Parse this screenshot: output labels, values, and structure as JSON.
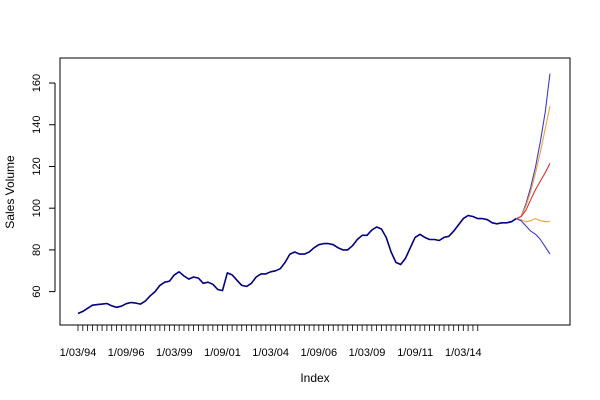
{
  "chart_data": {
    "type": "line",
    "xlabel": "Index",
    "ylabel": "Sales Volume",
    "ylim": [
      44,
      172
    ],
    "y_ticks": [
      60,
      80,
      100,
      120,
      140,
      160
    ],
    "x_tick_labels": [
      "1/03/94",
      "1/09/96",
      "1/03/99",
      "1/09/01",
      "1/03/04",
      "1/09/06",
      "1/03/09",
      "1/09/11",
      "1/03/14"
    ],
    "x_tick_indices": [
      0,
      10,
      20,
      30,
      40,
      50,
      60,
      70,
      80
    ],
    "index_count": 84,
    "forecast_end_index": 91.5,
    "grid": false,
    "legend": "none",
    "series": [
      {
        "color": "#000080",
        "points": [
          [
            0,
            49.5
          ],
          [
            1,
            50.5
          ],
          [
            2,
            52
          ],
          [
            3,
            53.5
          ],
          [
            4,
            53.8
          ],
          [
            5,
            54
          ],
          [
            6,
            54.3
          ],
          [
            7,
            53.2
          ],
          [
            8,
            52.5
          ],
          [
            9,
            53
          ],
          [
            10,
            54.2
          ],
          [
            11,
            54.8
          ],
          [
            12,
            54.5
          ],
          [
            13,
            54
          ],
          [
            14,
            55.5
          ],
          [
            15,
            58
          ],
          [
            16,
            60
          ],
          [
            17,
            63
          ],
          [
            18,
            64.5
          ],
          [
            19,
            65
          ],
          [
            20,
            68
          ],
          [
            21,
            69.5
          ],
          [
            22,
            67.5
          ],
          [
            23,
            66
          ],
          [
            24,
            67
          ],
          [
            25,
            66.5
          ],
          [
            26,
            64
          ],
          [
            27,
            64.5
          ],
          [
            28,
            63.5
          ],
          [
            29,
            61
          ],
          [
            30,
            60.5
          ],
          [
            31,
            69
          ],
          [
            32,
            68
          ],
          [
            33,
            65.5
          ],
          [
            34,
            63
          ],
          [
            35,
            62.5
          ],
          [
            36,
            64
          ],
          [
            37,
            67
          ],
          [
            38,
            68.5
          ],
          [
            39,
            68.5
          ],
          [
            40,
            69.5
          ],
          [
            41,
            70
          ],
          [
            42,
            71
          ],
          [
            43,
            74
          ],
          [
            44,
            78
          ],
          [
            45,
            79
          ],
          [
            46,
            78
          ],
          [
            47,
            78
          ],
          [
            48,
            79
          ],
          [
            49,
            81
          ],
          [
            50,
            82.5
          ],
          [
            51,
            83
          ],
          [
            52,
            83
          ],
          [
            53,
            82.5
          ],
          [
            54,
            81
          ],
          [
            55,
            80
          ],
          [
            56,
            80
          ],
          [
            57,
            82
          ],
          [
            58,
            85
          ],
          [
            59,
            87
          ],
          [
            60,
            87
          ],
          [
            61,
            89.5
          ],
          [
            62,
            91
          ],
          [
            63,
            90
          ],
          [
            64,
            86
          ],
          [
            65,
            79
          ],
          [
            66,
            74
          ],
          [
            67,
            73
          ],
          [
            68,
            76
          ],
          [
            69,
            81
          ],
          [
            70,
            86
          ],
          [
            71,
            87.5
          ],
          [
            72,
            86
          ],
          [
            73,
            85
          ],
          [
            74,
            85
          ],
          [
            75,
            84.5
          ],
          [
            76,
            86
          ],
          [
            77,
            86.5
          ],
          [
            78,
            89
          ],
          [
            79,
            92
          ],
          [
            80,
            95
          ],
          [
            81,
            96.5
          ],
          [
            82,
            96
          ],
          [
            83,
            95
          ],
          [
            84,
            95
          ],
          [
            85,
            94.5
          ],
          [
            86,
            93
          ],
          [
            87,
            92.5
          ],
          [
            88,
            93
          ],
          [
            89,
            93
          ],
          [
            90,
            93.5
          ],
          [
            91,
            95
          ]
        ]
      },
      {
        "color": "#3c3cc8",
        "points": [
          [
            91,
            95
          ],
          [
            92,
            96
          ],
          [
            93,
            102
          ],
          [
            94,
            110
          ],
          [
            95,
            120
          ],
          [
            96,
            132
          ],
          [
            97,
            146
          ],
          [
            98,
            164.5
          ]
        ]
      },
      {
        "color": "#f0a040",
        "points": [
          [
            91,
            95
          ],
          [
            92,
            96
          ],
          [
            93,
            101
          ],
          [
            94,
            108
          ],
          [
            95,
            117
          ],
          [
            96,
            127
          ],
          [
            97,
            138
          ],
          [
            98,
            149
          ]
        ]
      },
      {
        "color": "#e03030",
        "points": [
          [
            91,
            95
          ],
          [
            92,
            96
          ],
          [
            93,
            99
          ],
          [
            94,
            104
          ],
          [
            95,
            109
          ],
          [
            96,
            113
          ],
          [
            97,
            117
          ],
          [
            98,
            121.5
          ]
        ]
      },
      {
        "color": "#f0a040",
        "points": [
          [
            91,
            95
          ],
          [
            92,
            94.5
          ],
          [
            93,
            93.5
          ],
          [
            94,
            94
          ],
          [
            95,
            95
          ],
          [
            96,
            94
          ],
          [
            97,
            93.5
          ],
          [
            98,
            93.5
          ]
        ]
      },
      {
        "color": "#3c3cc8",
        "points": [
          [
            91,
            95
          ],
          [
            92,
            94
          ],
          [
            93,
            91.5
          ],
          [
            94,
            89
          ],
          [
            95,
            87.5
          ],
          [
            96,
            85
          ],
          [
            97,
            81.5
          ],
          [
            98,
            78
          ]
        ]
      }
    ]
  }
}
